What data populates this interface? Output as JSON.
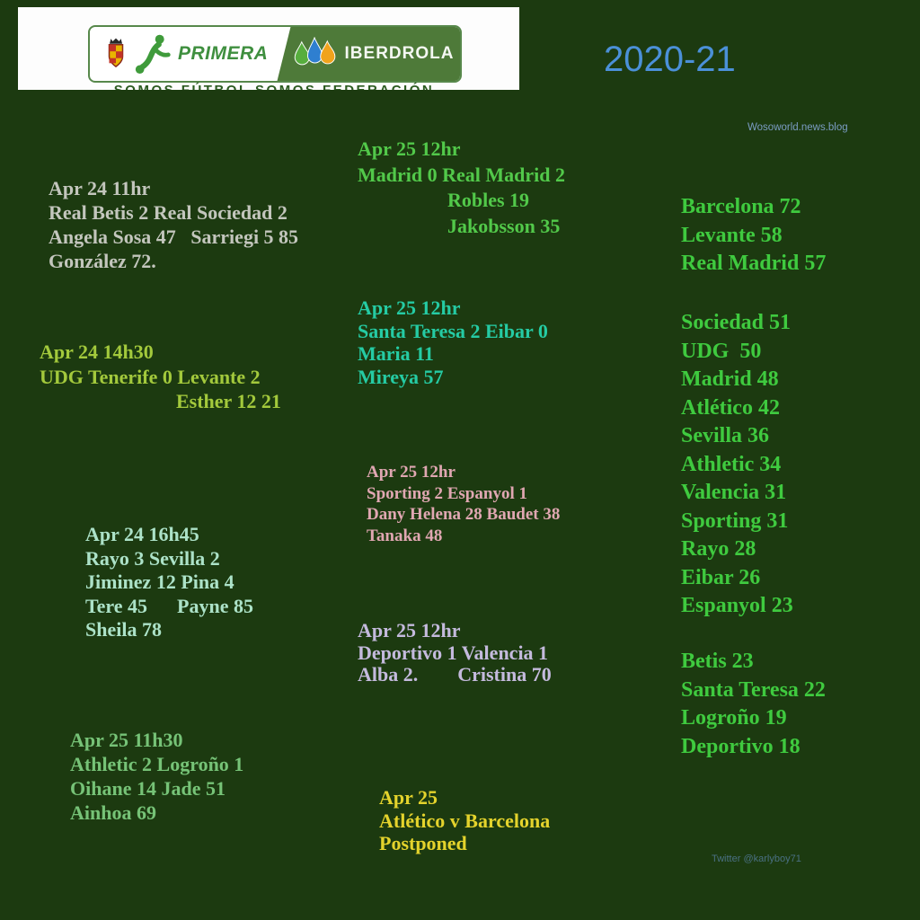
{
  "header": {
    "logo": {
      "primera": "PRIMERA",
      "iberdrola": "IBERDROLA",
      "slogan": "SOMOS FÚTBOL SOMOS FEDERACIÓN"
    },
    "season": "2020-21",
    "credit_top": "Wosoworld.news.blog",
    "credit_bottom": "Twitter @karlyboy71"
  },
  "palette": {
    "background": "#1c3a10",
    "banner_bg": "#fdfdfd",
    "iberdrola_panel_green": "#4e7a39",
    "primera_green": "#3f8f3f",
    "season_blue": "#4b90d8",
    "credit_top_blue": "#7b9cc4",
    "credit_bottom_teal": "#4a7083",
    "slogan_green": "#2c5b21"
  },
  "results": [
    {
      "color": "#c3c6bd",
      "lines": [
        "Apr 24 11hr",
        "Real Betis 2 Real Sociedad 2",
        "Angela Sosa 47   Sarriegi 5 85",
        "González 72."
      ]
    },
    {
      "color": "#a3c93c",
      "lines": [
        "Apr 24 14h30",
        "UDG Tenerife 0 Levante 2",
        "Esther 12 21"
      ]
    },
    {
      "color": "#ace2c8",
      "lines": [
        "Apr 24 16h45",
        "Rayo 3 Sevilla 2",
        "Jiminez 12 Pina 4",
        "Tere 45      Payne 85",
        "Sheila 78"
      ]
    },
    {
      "color": "#76c377",
      "lines": [
        "Apr 25 11h30",
        "Athletic 2 Logroño 1",
        "Oihane 14 Jade 51",
        "Ainhoa 69"
      ]
    },
    {
      "color": "#52c94a",
      "lines": [
        "Apr 25 12hr",
        "Madrid 0 Real Madrid 2",
        "Robles 19",
        "Jakobsson 35"
      ]
    },
    {
      "color": "#25cba4",
      "lines": [
        "Apr 25 12hr",
        "Santa Teresa 2 Eibar 0",
        "Maria 11",
        "Mireya 57"
      ]
    },
    {
      "color": "#e0a7b2",
      "lines": [
        "Apr 25 12hr",
        "Sporting 2 Espanyol 1",
        "Dany Helena 28 Baudet 38",
        "Tanaka 48"
      ]
    },
    {
      "color": "#c4badd",
      "lines": [
        "Apr 25 12hr",
        "Deportivo 1 Valencia 1",
        "Alba 2.        Cristina 70"
      ]
    },
    {
      "color": "#e4d32c",
      "lines": [
        "Apr 25",
        "Atlético v Barcelona",
        "Postponed"
      ]
    }
  ],
  "standings": {
    "color": "#3fca3f",
    "groups": [
      [
        "Barcelona 72",
        "Levante 58",
        "Real Madrid 57"
      ],
      [
        "Sociedad 51",
        "UDG  50",
        "Madrid 48",
        "Atlético 42",
        "Sevilla 36",
        "Athletic 34",
        "Valencia 31",
        "Sporting 31",
        "Rayo 28",
        "Eibar 26",
        "Espanyol 23"
      ],
      [
        "Betis 23",
        "Santa Teresa 22",
        "Logroño 19",
        "Deportivo 18"
      ]
    ]
  }
}
